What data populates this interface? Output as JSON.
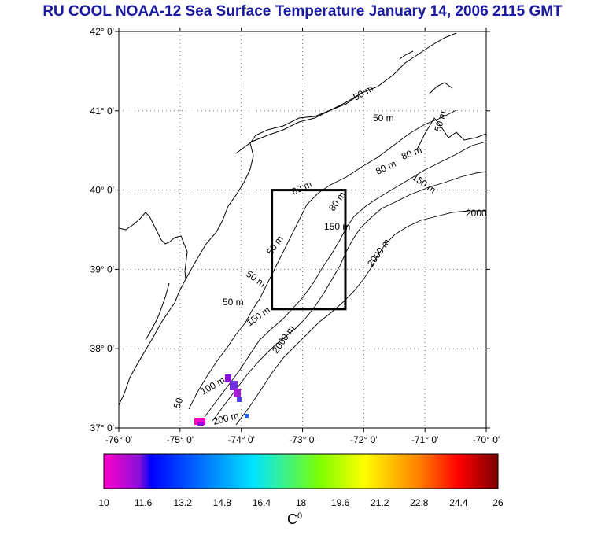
{
  "title": "RU COOL  NOAA-12 Sea Surface Temperature January 14, 2006 2115 GMT",
  "map": {
    "lat_labels": [
      "42° 0'",
      "41° 0'",
      "40° 0'",
      "39° 0'",
      "38° 0'",
      "37° 0'"
    ],
    "lon_labels": [
      "-76° 0'",
      "-75° 0'",
      "-74° 0'",
      "-73° 0'",
      "-72° 0'",
      "-71° 0'",
      "-70° 0'"
    ],
    "lat_range": [
      37,
      42
    ],
    "lon_range": [
      -76,
      -70
    ],
    "study_box": {
      "lon": [
        -73.5,
        -72.3
      ],
      "lat": [
        38.5,
        40.0
      ]
    },
    "contour_labels": [
      "50 m",
      "50 m",
      "50 m",
      "50 m",
      "80 m",
      "80 m",
      "80 m",
      "80 m",
      "150 m",
      "150 m",
      "150 m",
      "2000 m",
      "2000 m",
      "2000",
      "100 m",
      "50",
      "200 m",
      "50 m",
      "50 m"
    ],
    "colors": {
      "land_outline": "#000000",
      "box": "#000000",
      "grid": "#555555"
    }
  },
  "colorbar": {
    "tick_labels": [
      "10",
      "11.6",
      "13.2",
      "14.8",
      "16.4",
      "18",
      "19.6",
      "21.2",
      "22.8",
      "24.4",
      "26"
    ],
    "range": [
      10,
      26
    ],
    "unit_base": "C",
    "unit_sup": "0",
    "colors": [
      "#ff00cc",
      "#0000ff",
      "#00e5ff",
      "#7fff00",
      "#ffff00",
      "#ff8000",
      "#ff0000",
      "#7a0000"
    ]
  }
}
